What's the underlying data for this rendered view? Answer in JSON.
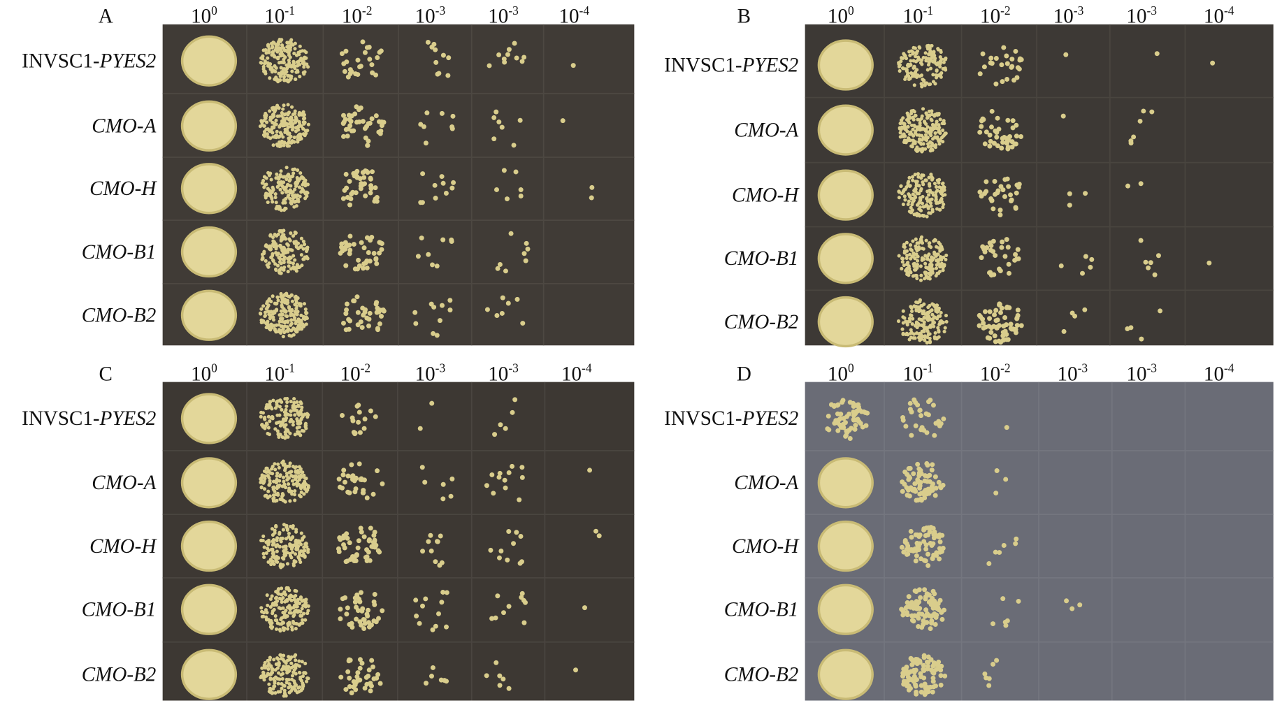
{
  "panels": [
    {
      "letter": "A",
      "columns": [
        {
          "base": "10",
          "exp": "0"
        },
        {
          "base": "10",
          "exp": "-1"
        },
        {
          "base": "10",
          "exp": "-2"
        },
        {
          "base": "10",
          "exp": "-3"
        },
        {
          "base": "10",
          "exp": "-3"
        },
        {
          "base": "10",
          "exp": "-4"
        }
      ],
      "rows": [
        {
          "plain": "INVSC1-",
          "italic": "PYES2"
        },
        {
          "italic": "CMO-A"
        },
        {
          "italic": "CMO-H"
        },
        {
          "italic": "CMO-B1"
        },
        {
          "italic": "CMO-B2"
        }
      ]
    },
    {
      "letter": "B",
      "columns": [
        {
          "base": "10",
          "exp": "0"
        },
        {
          "base": "10",
          "exp": "-1"
        },
        {
          "base": "10",
          "exp": "-2"
        },
        {
          "base": "10",
          "exp": "-3"
        },
        {
          "base": "10",
          "exp": "-3"
        },
        {
          "base": "10",
          "exp": "-4"
        }
      ],
      "rows": [
        {
          "plain": "INVSC1-",
          "italic": "PYES2"
        },
        {
          "italic": "CMO-A"
        },
        {
          "italic": "CMO-H"
        },
        {
          "italic": "CMO-B1"
        },
        {
          "italic": "CMO-B2"
        }
      ]
    },
    {
      "letter": "C",
      "columns": [
        {
          "base": "10",
          "exp": "0"
        },
        {
          "base": "10",
          "exp": "-1"
        },
        {
          "base": "10",
          "exp": "-2"
        },
        {
          "base": "10",
          "exp": "-3"
        },
        {
          "base": "10",
          "exp": "-3"
        },
        {
          "base": "10",
          "exp": "-4"
        }
      ],
      "rows": [
        {
          "plain": "INVSC1-",
          "italic": "PYES2"
        },
        {
          "italic": "CMO-A"
        },
        {
          "italic": "CMO-H"
        },
        {
          "italic": "CMO-B1"
        },
        {
          "italic": "CMO-B2"
        }
      ]
    },
    {
      "letter": "D",
      "columns": [
        {
          "base": "10",
          "exp": "0"
        },
        {
          "base": "10",
          "exp": "-1"
        },
        {
          "base": "10",
          "exp": "-2"
        },
        {
          "base": "10",
          "exp": "-3"
        },
        {
          "base": "10",
          "exp": "-3"
        },
        {
          "base": "10",
          "exp": "-4"
        }
      ],
      "rows": [
        {
          "plain": "INVSC1-",
          "italic": "PYES2"
        },
        {
          "italic": "CMO-A"
        },
        {
          "italic": "CMO-H"
        },
        {
          "italic": "CMO-B1"
        },
        {
          "italic": "CMO-B2"
        }
      ]
    }
  ]
}
